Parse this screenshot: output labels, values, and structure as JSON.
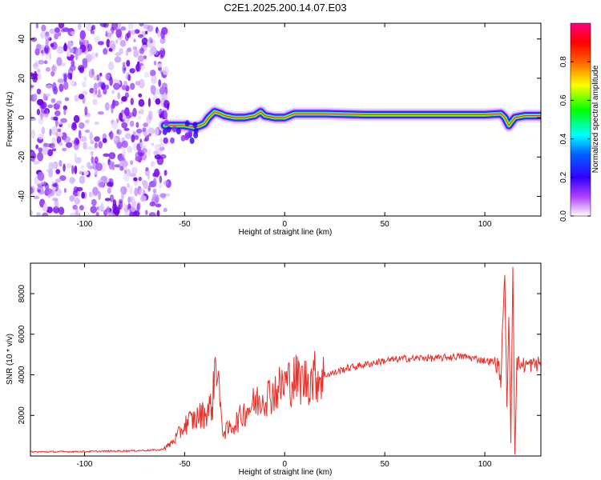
{
  "figure": {
    "title": "C2E1.2025.200.14.07.E03"
  },
  "chart_data": [
    {
      "type": "heatmap",
      "xlabel": "Height of straight line (km)",
      "ylabel": "Frequency (Hz)",
      "xlim": [
        -127,
        128
      ],
      "ylim": [
        -50,
        48
      ],
      "x_ticks": [
        -100,
        -50,
        0,
        50,
        100
      ],
      "y_ticks": [
        -40,
        -20,
        0,
        20,
        40
      ],
      "grid": false,
      "noise_region": {
        "x_range": [
          -127,
          -58
        ],
        "y_range": [
          -50,
          48
        ]
      },
      "ridge": {
        "x": [
          -60,
          -55,
          -50,
          -45,
          -42,
          -40,
          -38,
          -35,
          -32,
          -30,
          -25,
          -20,
          -15,
          -12,
          -10,
          -5,
          0,
          5,
          10,
          20,
          40,
          60,
          80,
          100,
          108,
          110,
          112,
          115,
          120,
          128
        ],
        "y": [
          -4,
          -4,
          -4,
          -5,
          -4,
          -3,
          0,
          3,
          2,
          1,
          0,
          0,
          1,
          3,
          1,
          0,
          0,
          2,
          2,
          2,
          1.5,
          1.5,
          1.5,
          1.5,
          2,
          0,
          -4,
          0,
          1,
          1
        ]
      },
      "colorbar": {
        "label": "Normalized spectral amplitude",
        "range": [
          0,
          1
        ],
        "ticks": [
          0.0,
          0.2,
          0.4,
          0.6,
          0.8
        ],
        "tick_labels": [
          "0.0",
          "0.2",
          "0.4",
          "0.6",
          "0.8"
        ],
        "colors": [
          "#ffffff",
          "#7a00ff",
          "#0000ff",
          "#00ffff",
          "#00ff00",
          "#ffff00",
          "#ff8000",
          "#ff0000",
          "#ff0080"
        ]
      }
    },
    {
      "type": "line",
      "xlabel": "Height of straight line (km)",
      "ylabel": "SNR (10 * v/v)",
      "xlim": [
        -127,
        128
      ],
      "ylim": [
        0,
        9500
      ],
      "x_ticks": [
        -100,
        -50,
        0,
        50,
        100
      ],
      "y_ticks": [
        2000,
        4000,
        6000,
        8000
      ],
      "grid": false,
      "series": [
        {
          "color": "#e8302a",
          "x": [
            -127,
            -100,
            -75,
            -62,
            -58,
            -55,
            -52,
            -50,
            -48,
            -45,
            -42,
            -40,
            -38,
            -36,
            -35,
            -34,
            -33,
            -32,
            -31,
            -30,
            -28,
            -25,
            -22,
            -20,
            -15,
            -10,
            -8,
            -5,
            -2,
            0,
            5,
            10,
            15,
            20,
            25,
            30,
            35,
            40,
            45,
            50,
            55,
            60,
            65,
            70,
            75,
            80,
            85,
            90,
            95,
            100,
            103,
            105,
            107,
            108,
            109,
            110,
            111,
            112,
            113,
            114,
            115,
            116,
            118,
            120,
            125,
            128
          ],
          "y": [
            200,
            220,
            260,
            300,
            500,
            800,
            1200,
            1500,
            1700,
            1800,
            2000,
            2100,
            2300,
            2600,
            4200,
            4900,
            3800,
            2000,
            1400,
            1200,
            1300,
            1600,
            1900,
            2200,
            2600,
            3000,
            3000,
            3200,
            3400,
            3600,
            3800,
            3700,
            3900,
            4000,
            4100,
            4300,
            4400,
            4500,
            4600,
            4700,
            4750,
            4800,
            4800,
            4850,
            4800,
            4850,
            4900,
            4900,
            4800,
            4700,
            4650,
            4600,
            4400,
            3500,
            7000,
            8600,
            2500,
            6500,
            1000,
            9400,
            300,
            4600,
            4500,
            4500,
            4500,
            4600
          ]
        }
      ]
    }
  ]
}
